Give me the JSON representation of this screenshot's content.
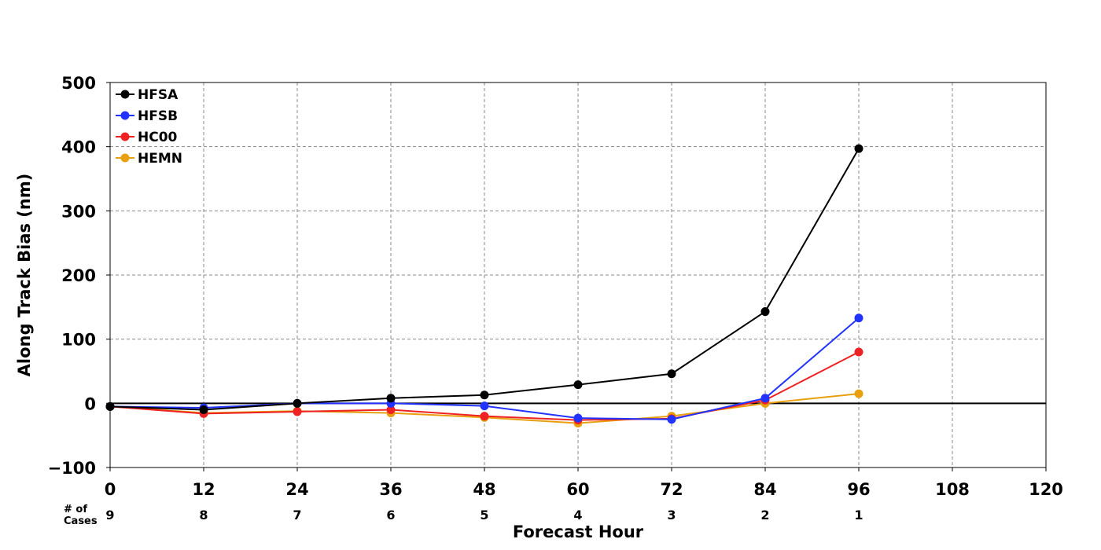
{
  "chart_data": {
    "type": "line",
    "xlabel": "Forecast Hour",
    "ylabel": "Along Track Bias (nm)",
    "xlim": [
      0,
      120
    ],
    "ylim": [
      -100,
      500
    ],
    "xticks": [
      0,
      12,
      24,
      36,
      48,
      60,
      72,
      84,
      96,
      108,
      120
    ],
    "yticks": [
      -100,
      0,
      100,
      200,
      300,
      400,
      500
    ],
    "ytick_labels": [
      "−100",
      "0",
      "100",
      "200",
      "300",
      "400",
      "500"
    ],
    "grid": true,
    "legend_position": "top-left",
    "cases_label": [
      "# of",
      "Cases"
    ],
    "cases": [
      {
        "x": 0,
        "n": "9"
      },
      {
        "x": 12,
        "n": "8"
      },
      {
        "x": 24,
        "n": "7"
      },
      {
        "x": 36,
        "n": "6"
      },
      {
        "x": 48,
        "n": "5"
      },
      {
        "x": 60,
        "n": "4"
      },
      {
        "x": 72,
        "n": "3"
      },
      {
        "x": 84,
        "n": "2"
      },
      {
        "x": 96,
        "n": "1"
      }
    ],
    "x": [
      0,
      12,
      24,
      36,
      48,
      60,
      72,
      84,
      96
    ],
    "series": [
      {
        "name": "HFSA",
        "color": "#000000",
        "values": [
          -5,
          -10,
          0,
          8,
          13,
          29,
          46,
          143,
          397
        ]
      },
      {
        "name": "HFSB",
        "color": "#2233ff",
        "values": [
          -5,
          -7,
          0,
          0,
          -4,
          -23,
          -25,
          8,
          133
        ]
      },
      {
        "name": "HC00",
        "color": "#ee2222",
        "values": [
          -5,
          -16,
          -13,
          -10,
          -20,
          -26,
          -24,
          5,
          80
        ]
      },
      {
        "name": "HEMN",
        "color": "#e8a010",
        "values": [
          -5,
          -15,
          -12,
          -15,
          -22,
          -31,
          -20,
          0,
          15
        ]
      }
    ]
  }
}
